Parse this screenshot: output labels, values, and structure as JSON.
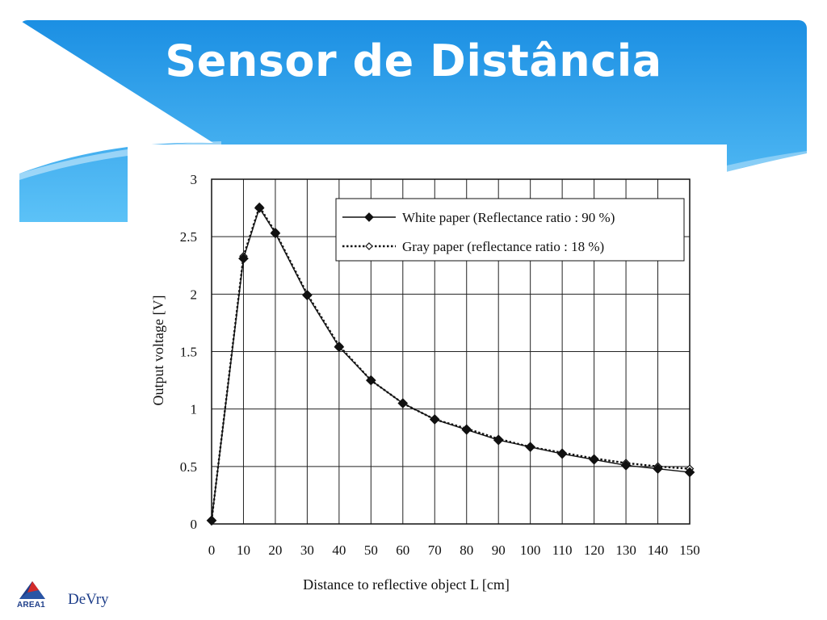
{
  "slide": {
    "title": "Sensor de Distância"
  },
  "colors": {
    "header_top": "#1b8fe3",
    "header_bottom": "#5cc2f7",
    "logo_blue": "#1f3f8a",
    "logo_red": "#d22b2b"
  },
  "logo": {
    "icon": "area1-triangle-icon",
    "area_text": "AREA1",
    "brand_text": "DeVry"
  },
  "chart_data": {
    "type": "line",
    "xlabel": "Distance to reflective object L [cm]",
    "ylabel": "Output voltage [V]",
    "xlim": [
      0,
      150
    ],
    "ylim": [
      0,
      3
    ],
    "x_ticks": [
      "0",
      "10",
      "20",
      "30",
      "40",
      "50",
      "60",
      "70",
      "80",
      "90",
      "100",
      "110",
      "120",
      "130",
      "140",
      "150"
    ],
    "y_ticks": [
      "0",
      "0.5",
      "1",
      "1.5",
      "2",
      "2.5",
      "3"
    ],
    "grid": true,
    "legend_position": "top-right",
    "series": [
      {
        "name": "White paper (Reflectance ratio : 90 %)",
        "style": "solid",
        "marker": "filled-diamond",
        "x": [
          0,
          10,
          15,
          20,
          30,
          40,
          50,
          60,
          70,
          80,
          90,
          100,
          110,
          120,
          130,
          140,
          150
        ],
        "y": [
          0.03,
          2.31,
          2.75,
          2.53,
          1.99,
          1.54,
          1.25,
          1.05,
          0.91,
          0.82,
          0.73,
          0.67,
          0.61,
          0.56,
          0.51,
          0.48,
          0.45
        ]
      },
      {
        "name": "Gray paper (reflectance ratio : 18 %)",
        "style": "dotted",
        "marker": "open-diamond",
        "x": [
          0,
          10,
          15,
          20,
          30,
          40,
          50,
          60,
          70,
          80,
          90,
          100,
          110,
          120,
          130,
          140,
          150
        ],
        "y": [
          0.03,
          2.33,
          2.76,
          2.54,
          2.0,
          1.55,
          1.25,
          1.05,
          0.91,
          0.83,
          0.74,
          0.67,
          0.62,
          0.57,
          0.53,
          0.5,
          0.48
        ]
      }
    ]
  }
}
